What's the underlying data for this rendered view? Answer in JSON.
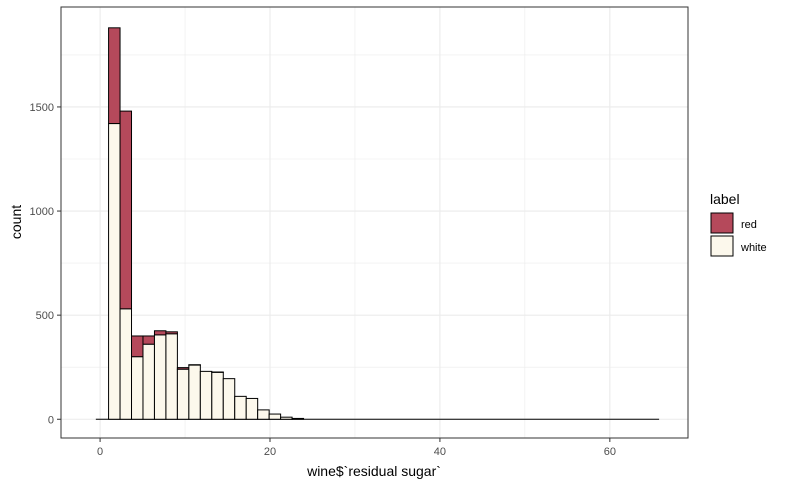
{
  "chart_data": {
    "type": "bar",
    "stacked": true,
    "xlabel": "wine$`residual sugar`",
    "ylabel": "count",
    "xlim": [
      -4.6,
      69.2
    ],
    "ylim": [
      -90,
      1980
    ],
    "x_ticks": [
      0,
      20,
      40,
      60
    ],
    "y_ticks": [
      0,
      500,
      1000,
      1500
    ],
    "x_tick_labels": [
      "0",
      "20",
      "40",
      "60"
    ],
    "y_tick_labels": [
      "0",
      "500",
      "1000",
      "1500"
    ],
    "grid": true,
    "bin_width": 1.35,
    "baseline_range": [
      -0.5,
      65.8
    ],
    "legend": {
      "title": "label",
      "position": "right",
      "entries": [
        "red",
        "white"
      ]
    },
    "series": [
      {
        "name": "red",
        "color": "#b5495b",
        "values": [
          460,
          950,
          100,
          40,
          20,
          10,
          8,
          2,
          0,
          2,
          0,
          0,
          0,
          0,
          0,
          0,
          0
        ]
      },
      {
        "name": "white",
        "color": "#fcf8ec",
        "values": [
          1420,
          530,
          300,
          360,
          405,
          410,
          240,
          260,
          230,
          225,
          195,
          110,
          100,
          45,
          25,
          10,
          4
        ]
      }
    ],
    "bin_starts": [
      1.0,
      2.35,
      3.7,
      5.05,
      6.4,
      7.75,
      9.1,
      10.45,
      11.8,
      13.15,
      14.5,
      15.85,
      17.2,
      18.55,
      19.9,
      21.25,
      22.6
    ]
  }
}
